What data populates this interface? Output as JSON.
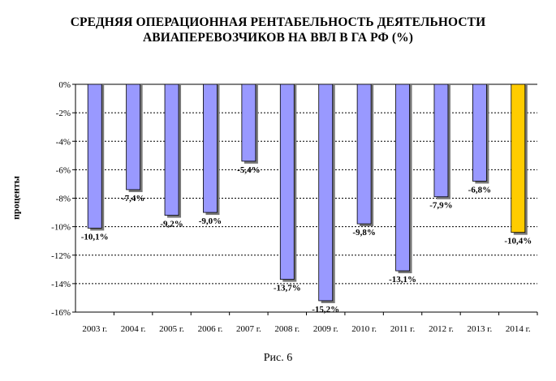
{
  "title_line1": "СРЕДНЯЯ ОПЕРАЦИОННАЯ РЕНТАБЕЛЬНОСТЬ ДЕЯТЕЛЬНОСТИ",
  "title_line2": "АВИАПЕРЕВОЗЧИКОВ НА ВВЛ В ГА РФ (%)",
  "caption": "Рис. 6",
  "colors": {
    "bar": "#9999ff",
    "highlight": "#ffcc00",
    "grid": "#000000"
  },
  "chart_data": {
    "type": "bar",
    "title": "СРЕДНЯЯ ОПЕРАЦИОННАЯ РЕНТАБЕЛЬНОСТЬ ДЕЯТЕЛЬНОСТИ АВИАПЕРЕВОЗЧИКОВ НА ВВЛ В ГА РФ (%)",
    "xlabel": "",
    "ylabel": "проценты",
    "categories": [
      "2003 г.",
      "2004 г.",
      "2005 г.",
      "2006 г.",
      "2007 г.",
      "2008 г.",
      "2009 г.",
      "2010 г.",
      "2011 г.",
      "2012 г.",
      "2013 г.",
      "2014 г."
    ],
    "values": [
      -10.1,
      -7.4,
      -9.2,
      -9.0,
      -5.4,
      -13.7,
      -15.2,
      -9.8,
      -13.1,
      -7.9,
      -6.8,
      -10.4
    ],
    "data_labels": [
      "-10,1%",
      "-7,4%",
      "-9,2%",
      "-9,0%",
      "-5,4%",
      "-13,7%",
      "-15,2%",
      "-9,8%",
      "-13,1%",
      "-7,9%",
      "-6,8%",
      "-10,4%"
    ],
    "highlight_index": 11,
    "ylim": [
      -16,
      0
    ],
    "yticks": [
      0,
      -2,
      -4,
      -6,
      -8,
      -10,
      -12,
      -14,
      -16
    ],
    "ytick_labels": [
      "0%",
      "-2%",
      "-4%",
      "-6%",
      "-8%",
      "-10%",
      "-12%",
      "-14%",
      "-16%"
    ],
    "grid": true,
    "legend": "none"
  }
}
